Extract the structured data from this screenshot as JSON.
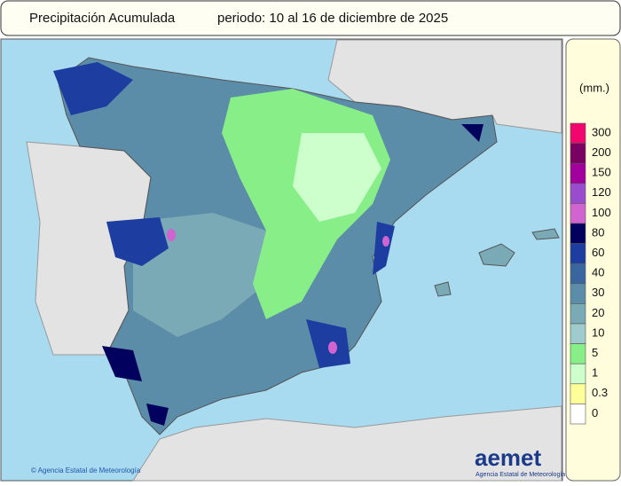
{
  "header": {
    "title": "Precipitación Acumulada",
    "period": "periodo: 10 al 16 de diciembre de 2025"
  },
  "legend": {
    "unit": "(mm.)",
    "levels": [
      {
        "label": "300",
        "color": "#f2056e"
      },
      {
        "label": "200",
        "color": "#7a0062"
      },
      {
        "label": "150",
        "color": "#a2009e"
      },
      {
        "label": "120",
        "color": "#9a4ccf"
      },
      {
        "label": "100",
        "color": "#d064d0"
      },
      {
        "label": "80",
        "color": "#02025e"
      },
      {
        "label": "60",
        "color": "#1d3ea0"
      },
      {
        "label": "40",
        "color": "#3a66a0"
      },
      {
        "label": "30",
        "color": "#5b8ca8"
      },
      {
        "label": "20",
        "color": "#7aaab6"
      },
      {
        "label": "10",
        "color": "#9ecbcb"
      },
      {
        "label": "5",
        "color": "#88ee88"
      },
      {
        "label": "1",
        "color": "#ccffcc"
      },
      {
        "label": "0.3",
        "color": "#ffff99"
      },
      {
        "label": "0",
        "color": "#ffffff"
      }
    ]
  },
  "footer": {
    "copyright": "© Agencia Estatal de Meteorología",
    "logo": "aemet",
    "logo_subtitle": "Agencia Estatal de Meteorología"
  }
}
